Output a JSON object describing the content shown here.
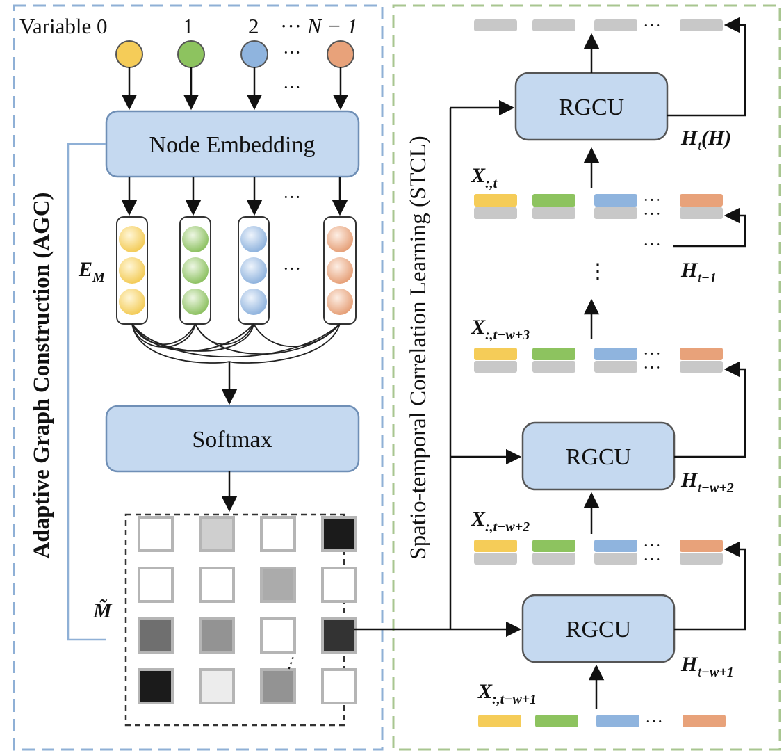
{
  "colors": {
    "yellow": "#f5cc58",
    "green": "#8dc35f",
    "blue": "#8fb4de",
    "orange": "#e8a27a",
    "gray": "#c8c8c8",
    "box_fill": "#c5d9f0",
    "box_stroke": "#6f8fb6",
    "left_frame": "#8fb0d6",
    "right_frame": "#a8c690"
  },
  "agc": {
    "section_label": "Adaptive Graph Construction (AGC)",
    "variables": {
      "prefix": "Variable 0",
      "label_1": "1",
      "label_2": "2",
      "label_last_dots": "···",
      "label_last": "N − 1"
    },
    "node_embedding_label": "Node Embedding",
    "embedding_symbol": "E",
    "embedding_subscript": "M",
    "softmax_label": "Softmax",
    "matrix_symbol": "M̃",
    "matrix_cells": [
      [
        0.0,
        0.2,
        0.0,
        0.95
      ],
      [
        0.0,
        0.0,
        0.35,
        0.0
      ],
      [
        0.6,
        0.45,
        0.0,
        0.85
      ],
      [
        0.95,
        0.08,
        0.45,
        0.0
      ]
    ]
  },
  "stcl": {
    "section_label": "Spatio-temporal Correlation Learning (STCL)",
    "rgcu_top": "RGCU",
    "rgcu_mid": "RGCU",
    "rgcu_bottom": "RGCU",
    "h_t": "H",
    "h_t_sub": "t",
    "h_t_suffix": "(H)",
    "h_t1": "H",
    "h_t1_sub": "t−1",
    "h_tw2": "H",
    "h_tw2_sub": "t−w+2",
    "h_tw1": "H",
    "h_tw1_sub": "t−w+1",
    "x_t": "X",
    "x_t_sub": ":,t",
    "x_tw3": "X",
    "x_tw3_sub": ":,t−w+3",
    "x_tw2": "X",
    "x_tw2_sub": ":,t−w+2",
    "x_tw1": "X",
    "x_tw1_sub": ":,t−w+1"
  },
  "ellipsis": "···",
  "vertical_ellipsis": "⋮"
}
